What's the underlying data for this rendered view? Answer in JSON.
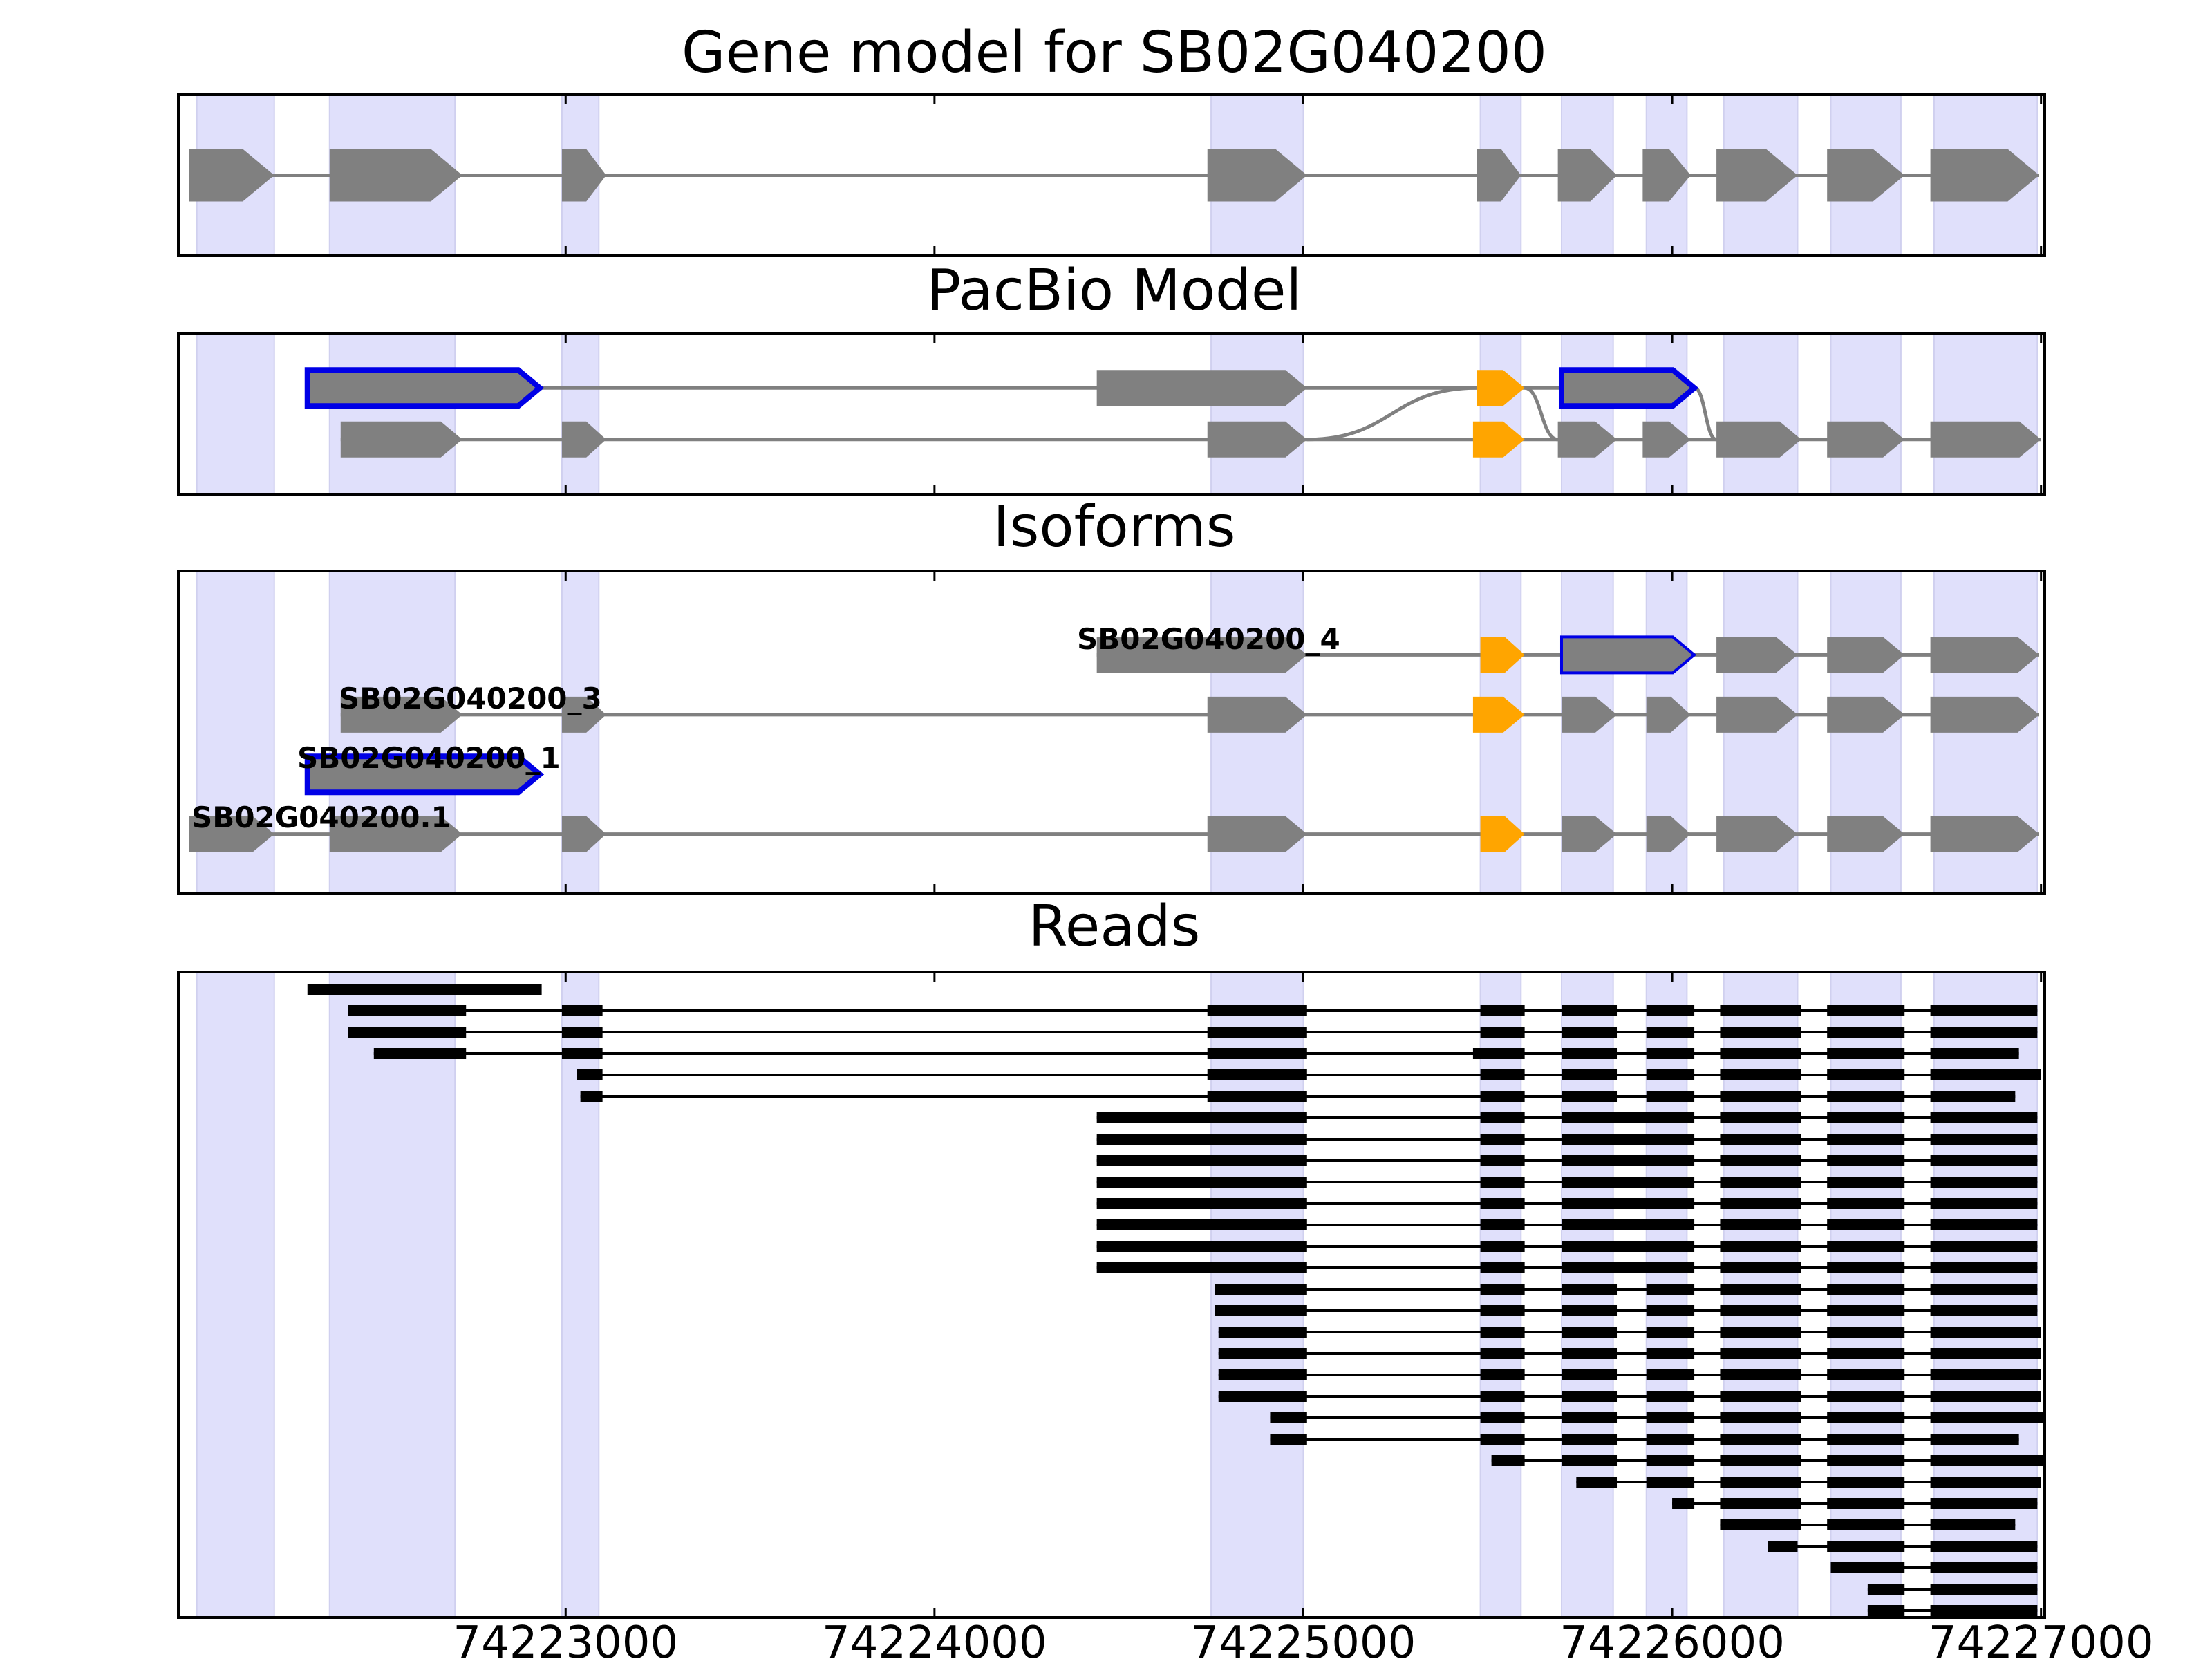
{
  "exon_bands": [
    [
      74222000,
      74222210
    ],
    [
      74222360,
      74222700
    ],
    [
      74222990,
      74223090
    ],
    [
      74224750,
      74225000
    ],
    [
      74225480,
      74225590
    ],
    [
      74225700,
      74225840
    ],
    [
      74225930,
      74226040
    ],
    [
      74226140,
      74226340
    ],
    [
      74226430,
      74226620
    ],
    [
      74226710,
      74226990
    ]
  ],
  "x_axis": {
    "range": [
      74221950,
      74227010
    ],
    "ticks": [
      74223000,
      74224000,
      74225000,
      74226000,
      74227000
    ],
    "tick_labels": [
      "74223000",
      "74224000",
      "74225000",
      "74226000",
      "74227000"
    ]
  },
  "colors": {
    "band": "#e0e0fb",
    "band_edge": "#d0d0ef",
    "exon": "#808080",
    "highlight": "#ffa500",
    "outline": "#0000e6",
    "read": "#000000",
    "line": "#808080"
  },
  "panels": [
    {
      "id": "gene-model",
      "title": "Gene model for SB02G040200",
      "tracks": [
        {
          "label": "",
          "level": 0.5,
          "exons": [
            [
              74221980,
              74222210,
              "gray"
            ],
            [
              74222360,
              74222720,
              "gray"
            ],
            [
              74222990,
              74223110,
              "gray"
            ],
            [
              74224740,
              74225010,
              "gray"
            ],
            [
              74225470,
              74225590,
              "gray"
            ],
            [
              74225690,
              74225850,
              "gray"
            ],
            [
              74225920,
              74226050,
              "gray"
            ],
            [
              74226120,
              74226340,
              "gray"
            ],
            [
              74226420,
              74226630,
              "gray"
            ],
            [
              74226700,
              74226995,
              "gray"
            ]
          ]
        }
      ]
    },
    {
      "id": "pacbio-model",
      "title": "PacBio Model",
      "tracks": [
        {
          "label": "",
          "level": 0.66,
          "exons": [
            [
              74222300,
              74222930,
              "outline"
            ],
            [
              74224440,
              74225010,
              "gray"
            ],
            [
              74225470,
              74225600,
              "orange"
            ],
            [
              74225700,
              74226060,
              "outline"
            ]
          ]
        },
        {
          "label": "",
          "level": 0.34,
          "exons": [
            [
              74222390,
              74222720,
              "gray"
            ],
            [
              74222990,
              74223110,
              "gray"
            ],
            [
              74224740,
              74225010,
              "gray"
            ],
            [
              74225460,
              74225600,
              "orange"
            ],
            [
              74225690,
              74225850,
              "gray"
            ],
            [
              74225920,
              74226050,
              "gray"
            ],
            [
              74226120,
              74226350,
              "gray"
            ],
            [
              74226420,
              74226630,
              "gray"
            ],
            [
              74226700,
              74227000,
              "gray"
            ]
          ]
        }
      ],
      "connectors": [
        [
          74225010,
          0.34,
          74225470,
          0.66
        ],
        [
          74225600,
          0.66,
          74225690,
          0.34
        ],
        [
          74226060,
          0.66,
          74226120,
          0.34
        ]
      ]
    },
    {
      "id": "isoforms",
      "title": "Isoforms",
      "tracks": [
        {
          "label": "SB02G040200_4",
          "level": 0.74,
          "exons": [
            [
              74224440,
              74225010,
              "gray"
            ],
            [
              74225480,
              74225600,
              "orange"
            ],
            [
              74225700,
              74226060,
              "thin-outline"
            ],
            [
              74226120,
              74226340,
              "gray"
            ],
            [
              74226420,
              74226630,
              "gray"
            ],
            [
              74226700,
              74226995,
              "gray"
            ]
          ]
        },
        {
          "label": "SB02G040200_3",
          "level": 0.555,
          "exons": [
            [
              74222390,
              74222720,
              "gray"
            ],
            [
              74222990,
              74223110,
              "gray"
            ],
            [
              74224740,
              74225010,
              "gray"
            ],
            [
              74225460,
              74225600,
              "orange"
            ],
            [
              74225700,
              74225850,
              "gray"
            ],
            [
              74225930,
              74226050,
              "gray"
            ],
            [
              74226120,
              74226340,
              "gray"
            ],
            [
              74226420,
              74226630,
              "gray"
            ],
            [
              74226700,
              74226995,
              "gray"
            ]
          ]
        },
        {
          "label": "SB02G040200_1",
          "level": 0.37,
          "exons": [
            [
              74222300,
              74222930,
              "outline"
            ]
          ]
        },
        {
          "label": "SB02G040200.1",
          "level": 0.185,
          "exons": [
            [
              74221980,
              74222210,
              "gray"
            ],
            [
              74222360,
              74222720,
              "gray"
            ],
            [
              74222990,
              74223110,
              "gray"
            ],
            [
              74224740,
              74225010,
              "gray"
            ],
            [
              74225480,
              74225600,
              "orange"
            ],
            [
              74225700,
              74225850,
              "gray"
            ],
            [
              74225930,
              74226050,
              "gray"
            ],
            [
              74226120,
              74226340,
              "gray"
            ],
            [
              74226420,
              74226630,
              "gray"
            ],
            [
              74226700,
              74226995,
              "gray"
            ]
          ]
        }
      ]
    },
    {
      "id": "reads",
      "title": "Reads",
      "reads": [
        [
          [
            74222300,
            74222935
          ]
        ],
        [
          [
            74222410,
            74222730
          ],
          [
            74222990,
            74223100
          ],
          [
            74224740,
            74225010
          ],
          [
            74225480,
            74225600
          ],
          [
            74225700,
            74225850
          ],
          [
            74225930,
            74226060
          ],
          [
            74226130,
            74226350
          ],
          [
            74226420,
            74226630
          ],
          [
            74226700,
            74226990
          ]
        ],
        [
          [
            74222410,
            74222730
          ],
          [
            74222990,
            74223100
          ],
          [
            74224740,
            74225010
          ],
          [
            74225480,
            74225600
          ],
          [
            74225700,
            74225850
          ],
          [
            74225930,
            74226060
          ],
          [
            74226130,
            74226350
          ],
          [
            74226420,
            74226630
          ],
          [
            74226700,
            74226990
          ]
        ],
        [
          [
            74222480,
            74222730
          ],
          [
            74222990,
            74223100
          ],
          [
            74224740,
            74225010
          ],
          [
            74225460,
            74225600
          ],
          [
            74225700,
            74225850
          ],
          [
            74225930,
            74226060
          ],
          [
            74226130,
            74226350
          ],
          [
            74226420,
            74226630
          ],
          [
            74226700,
            74226940
          ]
        ],
        [
          [
            74223030,
            74223100
          ],
          [
            74224740,
            74225010
          ],
          [
            74225480,
            74225600
          ],
          [
            74225700,
            74225850
          ],
          [
            74225930,
            74226060
          ],
          [
            74226130,
            74226350
          ],
          [
            74226420,
            74226630
          ],
          [
            74226700,
            74227000
          ]
        ],
        [
          [
            74223040,
            74223100
          ],
          [
            74224740,
            74225010
          ],
          [
            74225480,
            74225600
          ],
          [
            74225700,
            74225850
          ],
          [
            74225930,
            74226060
          ],
          [
            74226130,
            74226350
          ],
          [
            74226420,
            74226630
          ],
          [
            74226700,
            74226930
          ]
        ],
        [
          [
            74224440,
            74225010
          ],
          [
            74225480,
            74225600
          ],
          [
            74225700,
            74226060
          ],
          [
            74226130,
            74226350
          ],
          [
            74226420,
            74226630
          ],
          [
            74226700,
            74226990
          ]
        ],
        [
          [
            74224440,
            74225010
          ],
          [
            74225480,
            74225600
          ],
          [
            74225700,
            74226060
          ],
          [
            74226130,
            74226350
          ],
          [
            74226420,
            74226630
          ],
          [
            74226700,
            74226990
          ]
        ],
        [
          [
            74224440,
            74225010
          ],
          [
            74225480,
            74225600
          ],
          [
            74225700,
            74226060
          ],
          [
            74226130,
            74226350
          ],
          [
            74226420,
            74226630
          ],
          [
            74226700,
            74226990
          ]
        ],
        [
          [
            74224440,
            74225010
          ],
          [
            74225480,
            74225600
          ],
          [
            74225700,
            74226060
          ],
          [
            74226130,
            74226350
          ],
          [
            74226420,
            74226630
          ],
          [
            74226700,
            74226990
          ]
        ],
        [
          [
            74224440,
            74225010
          ],
          [
            74225480,
            74225600
          ],
          [
            74225700,
            74226060
          ],
          [
            74226130,
            74226350
          ],
          [
            74226420,
            74226630
          ],
          [
            74226700,
            74226990
          ]
        ],
        [
          [
            74224440,
            74225010
          ],
          [
            74225480,
            74225600
          ],
          [
            74225700,
            74226060
          ],
          [
            74226130,
            74226350
          ],
          [
            74226420,
            74226630
          ],
          [
            74226700,
            74226990
          ]
        ],
        [
          [
            74224440,
            74225010
          ],
          [
            74225480,
            74225600
          ],
          [
            74225700,
            74226060
          ],
          [
            74226130,
            74226350
          ],
          [
            74226420,
            74226630
          ],
          [
            74226700,
            74226990
          ]
        ],
        [
          [
            74224440,
            74225010
          ],
          [
            74225480,
            74225600
          ],
          [
            74225700,
            74226060
          ],
          [
            74226130,
            74226350
          ],
          [
            74226420,
            74226630
          ],
          [
            74226700,
            74226990
          ]
        ],
        [
          [
            74224760,
            74225010
          ],
          [
            74225480,
            74225600
          ],
          [
            74225700,
            74225850
          ],
          [
            74225930,
            74226060
          ],
          [
            74226130,
            74226350
          ],
          [
            74226420,
            74226630
          ],
          [
            74226700,
            74226990
          ]
        ],
        [
          [
            74224760,
            74225010
          ],
          [
            74225480,
            74225600
          ],
          [
            74225700,
            74225850
          ],
          [
            74225930,
            74226060
          ],
          [
            74226130,
            74226350
          ],
          [
            74226420,
            74226630
          ],
          [
            74226700,
            74226990
          ]
        ],
        [
          [
            74224770,
            74225010
          ],
          [
            74225480,
            74225600
          ],
          [
            74225700,
            74225850
          ],
          [
            74225930,
            74226060
          ],
          [
            74226130,
            74226350
          ],
          [
            74226420,
            74226630
          ],
          [
            74226700,
            74227000
          ]
        ],
        [
          [
            74224770,
            74225010
          ],
          [
            74225480,
            74225600
          ],
          [
            74225700,
            74225850
          ],
          [
            74225930,
            74226060
          ],
          [
            74226130,
            74226350
          ],
          [
            74226420,
            74226630
          ],
          [
            74226700,
            74227000
          ]
        ],
        [
          [
            74224770,
            74225010
          ],
          [
            74225480,
            74225600
          ],
          [
            74225700,
            74225850
          ],
          [
            74225930,
            74226060
          ],
          [
            74226130,
            74226350
          ],
          [
            74226420,
            74226630
          ],
          [
            74226700,
            74227000
          ]
        ],
        [
          [
            74224770,
            74225010
          ],
          [
            74225480,
            74225600
          ],
          [
            74225700,
            74225850
          ],
          [
            74225930,
            74226060
          ],
          [
            74226130,
            74226350
          ],
          [
            74226420,
            74226630
          ],
          [
            74226700,
            74227000
          ]
        ],
        [
          [
            74224910,
            74225010
          ],
          [
            74225480,
            74225600
          ],
          [
            74225700,
            74225850
          ],
          [
            74225930,
            74226060
          ],
          [
            74226130,
            74226350
          ],
          [
            74226420,
            74226630
          ],
          [
            74226700,
            74227010
          ]
        ],
        [
          [
            74224910,
            74225010
          ],
          [
            74225480,
            74225600
          ],
          [
            74225700,
            74225850
          ],
          [
            74225930,
            74226060
          ],
          [
            74226130,
            74226350
          ],
          [
            74226420,
            74226630
          ],
          [
            74226700,
            74226940
          ]
        ],
        [
          [
            74225510,
            74225600
          ],
          [
            74225700,
            74225850
          ],
          [
            74225930,
            74226060
          ],
          [
            74226130,
            74226350
          ],
          [
            74226420,
            74226630
          ],
          [
            74226700,
            74227010
          ]
        ],
        [
          [
            74225740,
            74225850
          ],
          [
            74225930,
            74226060
          ],
          [
            74226130,
            74226350
          ],
          [
            74226420,
            74226630
          ],
          [
            74226700,
            74227000
          ]
        ],
        [
          [
            74226000,
            74226060
          ],
          [
            74226130,
            74226350
          ],
          [
            74226420,
            74226630
          ],
          [
            74226700,
            74226990
          ]
        ],
        [
          [
            74226130,
            74226350
          ],
          [
            74226420,
            74226630
          ],
          [
            74226700,
            74226930
          ]
        ],
        [
          [
            74226260,
            74226340
          ],
          [
            74226420,
            74226630
          ],
          [
            74226700,
            74226990
          ]
        ],
        [
          [
            74226430,
            74226630
          ],
          [
            74226700,
            74226990
          ]
        ],
        [
          [
            74226530,
            74226630
          ],
          [
            74226700,
            74226990
          ]
        ],
        [
          [
            74226530,
            74226630
          ],
          [
            74226700,
            74226990
          ]
        ]
      ]
    }
  ]
}
